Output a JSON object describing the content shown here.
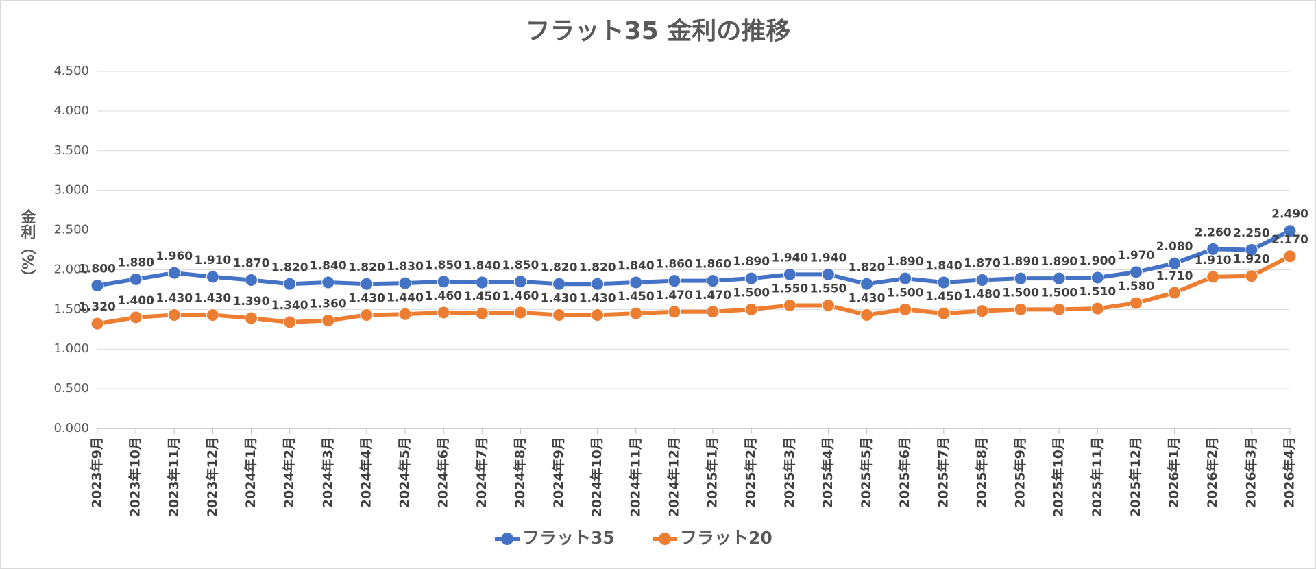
{
  "chart_data": {
    "type": "line",
    "title": "フラット35 金利の推移",
    "y_label": "金利（%）",
    "categories": [
      "2023年9月",
      "2023年10月",
      "2023年11月",
      "2023年12月",
      "2024年1月",
      "2024年2月",
      "2024年3月",
      "2024年4月",
      "2024年5月",
      "2024年6月",
      "2024年7月",
      "2024年8月",
      "2024年9月",
      "2024年10月",
      "2024年11月",
      "2024年12月",
      "2025年1月",
      "2025年2月",
      "2025年3月",
      "2025年4月",
      "2025年5月",
      "2025年6月",
      "2025年7月",
      "2025年8月",
      "2025年9月",
      "2025年10月",
      "2025年11月",
      "2025年12月",
      "2026年1月",
      "2026年2月",
      "2026年3月",
      "2026年4月"
    ],
    "series": [
      {
        "name": "フラット35",
        "color": "#4472c4",
        "values": [
          1.8,
          1.88,
          1.96,
          1.91,
          1.87,
          1.82,
          1.84,
          1.82,
          1.83,
          1.85,
          1.84,
          1.85,
          1.82,
          1.82,
          1.84,
          1.86,
          1.86,
          1.89,
          1.94,
          1.94,
          1.82,
          1.89,
          1.84,
          1.87,
          1.89,
          1.89,
          1.9,
          1.97,
          2.08,
          2.26,
          2.25,
          2.49
        ],
        "value_labels": [
          "1.800",
          "1.880",
          "1.960",
          "1.910",
          "1.870",
          "1.820",
          "1.840",
          "1.820",
          "1.830",
          "1.850",
          "1.840",
          "1.850",
          "1.820",
          "1.820",
          "1.840",
          "1.860",
          "1.860",
          "1.890",
          "1.940",
          "1.940",
          "1.820",
          "1.890",
          "1.840",
          "1.870",
          "1.890",
          "1.890",
          "1.900",
          "1.970",
          "2.080",
          "2.260",
          "2.250",
          "2.490"
        ]
      },
      {
        "name": "フラット20",
        "color": "#ed7d31",
        "values": [
          1.32,
          1.4,
          1.43,
          1.43,
          1.39,
          1.34,
          1.36,
          1.43,
          1.44,
          1.46,
          1.45,
          1.46,
          1.43,
          1.43,
          1.45,
          1.47,
          1.47,
          1.5,
          1.55,
          1.55,
          1.43,
          1.5,
          1.45,
          1.48,
          1.5,
          1.5,
          1.51,
          1.58,
          1.71,
          1.91,
          1.92,
          2.17
        ],
        "value_labels": [
          "1.320",
          "1.400",
          "1.430",
          "1.430",
          "1.390",
          "1.340",
          "1.360",
          "1.430",
          "1.440",
          "1.460",
          "1.450",
          "1.460",
          "1.430",
          "1.430",
          "1.450",
          "1.470",
          "1.470",
          "1.500",
          "1.550",
          "1.550",
          "1.430",
          "1.500",
          "1.450",
          "1.480",
          "1.500",
          "1.500",
          "1.510",
          "1.580",
          "1.710",
          "1.910",
          "1.920",
          "2.170"
        ]
      }
    ],
    "ylim": [
      0,
      4.5
    ],
    "yticks": [
      {
        "value": 0,
        "label": "0.000"
      },
      {
        "value": 0.5,
        "label": "0.500"
      },
      {
        "value": 1,
        "label": "1.000"
      },
      {
        "value": 1.5,
        "label": "1.500"
      },
      {
        "value": 2,
        "label": "2.000"
      },
      {
        "value": 2.5,
        "label": "2.500"
      },
      {
        "value": 3,
        "label": "3.000"
      },
      {
        "value": 3.5,
        "label": "3.500"
      },
      {
        "value": 4,
        "label": "4.000"
      },
      {
        "value": 4.5,
        "label": "4.500"
      }
    ],
    "grid": true,
    "legend": "bottom"
  }
}
